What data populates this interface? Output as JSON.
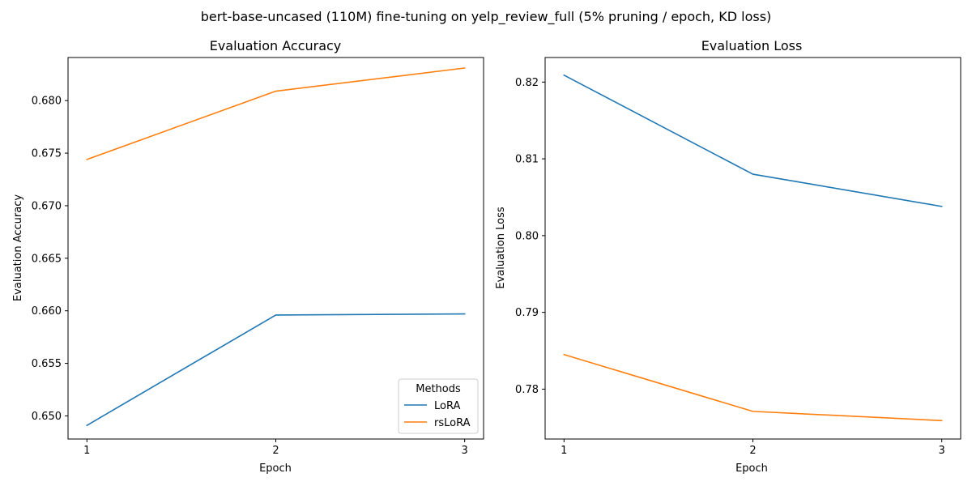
{
  "suptitle": "bert-base-uncased (110M) fine-tuning on yelp_review_full (5% pruning / epoch, KD loss)",
  "legend": {
    "title": "Methods",
    "placement": "lower right",
    "panel": 0
  },
  "colors": {
    "LoRA": "#1f77b4",
    "rsLoRA": "#ff7f0e"
  },
  "chart_data": [
    {
      "type": "line",
      "title": "Evaluation Accuracy",
      "xlabel": "Epoch",
      "ylabel": "Evaluation Accuracy",
      "x": [
        1,
        2,
        3
      ],
      "x_ticks": [
        "1",
        "2",
        "3"
      ],
      "xlim": [
        0.9,
        3.1
      ],
      "ylim": [
        0.6478,
        0.6841
      ],
      "y_ticks": [
        "0.650",
        "0.655",
        "0.660",
        "0.665",
        "0.670",
        "0.675",
        "0.680"
      ],
      "y_tick_values": [
        0.65,
        0.655,
        0.66,
        0.665,
        0.67,
        0.675,
        0.68
      ],
      "grid": false,
      "series": [
        {
          "name": "LoRA",
          "values": [
            0.6491,
            0.6596,
            0.6597
          ]
        },
        {
          "name": "rsLoRA",
          "values": [
            0.6744,
            0.6809,
            0.6831
          ]
        }
      ]
    },
    {
      "type": "line",
      "title": "Evaluation Loss",
      "xlabel": "Epoch",
      "ylabel": "Evaluation Loss",
      "x": [
        1,
        2,
        3
      ],
      "x_ticks": [
        "1",
        "2",
        "3"
      ],
      "xlim": [
        0.9,
        3.1
      ],
      "ylim": [
        0.7735,
        0.8232
      ],
      "y_ticks": [
        "0.78",
        "0.79",
        "0.80",
        "0.81",
        "0.82"
      ],
      "y_tick_values": [
        0.78,
        0.79,
        0.8,
        0.81,
        0.82
      ],
      "grid": false,
      "series": [
        {
          "name": "LoRA",
          "values": [
            0.8209,
            0.808,
            0.8038
          ]
        },
        {
          "name": "rsLoRA",
          "values": [
            0.7845,
            0.7771,
            0.7759
          ]
        }
      ]
    }
  ]
}
